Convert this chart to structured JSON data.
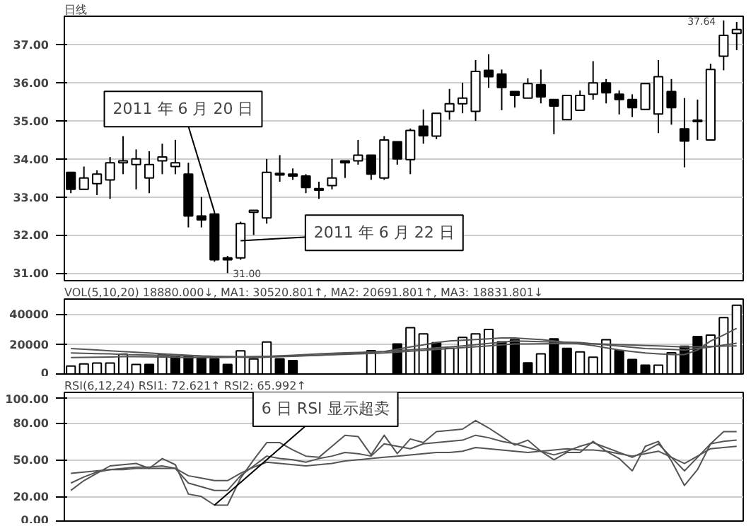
{
  "chart_data": [
    {
      "type": "candlestick",
      "title": "日线",
      "categories": [
        null,
        null,
        null,
        null,
        null,
        null,
        null,
        null,
        null,
        null,
        null,
        null,
        null,
        null,
        null,
        null,
        null,
        null,
        null,
        null,
        null,
        null,
        null,
        null,
        null,
        null,
        null,
        null,
        null,
        null,
        null,
        null,
        null,
        null,
        null,
        null,
        null,
        null,
        null,
        null,
        null,
        null,
        null,
        null,
        null,
        null,
        null,
        null,
        null,
        null,
        null,
        null
      ],
      "ohlc": [
        [
          33.65,
          33.65,
          33.1,
          33.2
        ],
        [
          33.2,
          33.8,
          33.2,
          33.5
        ],
        [
          33.35,
          33.7,
          33.05,
          33.6
        ],
        [
          33.45,
          34.05,
          32.95,
          33.9
        ],
        [
          33.9,
          34.6,
          33.6,
          33.95
        ],
        [
          33.85,
          34.25,
          33.2,
          34.0
        ],
        [
          33.5,
          34.2,
          33.1,
          33.85
        ],
        [
          33.95,
          34.4,
          33.6,
          34.05
        ],
        [
          33.8,
          34.5,
          33.6,
          33.9
        ],
        [
          33.6,
          33.9,
          32.2,
          32.5
        ],
        [
          32.5,
          33.0,
          32.2,
          32.4
        ],
        [
          32.55,
          32.6,
          31.3,
          31.35
        ],
        [
          31.4,
          31.45,
          31.0,
          31.35
        ],
        [
          31.4,
          32.35,
          31.35,
          32.3
        ],
        [
          32.6,
          32.65,
          32.0,
          32.65
        ],
        [
          32.45,
          34.0,
          32.3,
          33.65
        ],
        [
          33.62,
          34.1,
          33.4,
          33.58
        ],
        [
          33.6,
          33.75,
          33.45,
          33.55
        ],
        [
          33.55,
          33.6,
          33.1,
          33.25
        ],
        [
          33.22,
          33.4,
          32.95,
          33.18
        ],
        [
          33.3,
          34.0,
          33.2,
          33.5
        ],
        [
          33.95,
          33.95,
          33.5,
          33.9
        ],
        [
          33.95,
          34.5,
          33.85,
          34.1
        ],
        [
          34.1,
          34.1,
          33.45,
          33.6
        ],
        [
          33.5,
          34.6,
          33.45,
          34.5
        ],
        [
          34.45,
          34.45,
          33.85,
          34.0
        ],
        [
          33.98,
          34.8,
          33.6,
          34.75
        ],
        [
          34.86,
          35.3,
          34.4,
          34.61
        ],
        [
          34.6,
          35.2,
          34.52,
          35.2
        ],
        [
          35.25,
          35.84,
          35.03,
          35.45
        ],
        [
          35.45,
          36.0,
          35.2,
          35.6
        ],
        [
          35.25,
          36.6,
          35.0,
          36.3
        ],
        [
          36.33,
          36.75,
          35.87,
          36.16
        ],
        [
          36.23,
          36.35,
          35.28,
          35.88
        ],
        [
          35.77,
          35.77,
          35.35,
          35.67
        ],
        [
          35.6,
          36.12,
          35.6,
          35.98
        ],
        [
          35.95,
          36.35,
          35.46,
          35.63
        ],
        [
          35.56,
          35.56,
          34.65,
          35.39
        ],
        [
          35.03,
          35.67,
          35.03,
          35.67
        ],
        [
          35.28,
          35.8,
          35.28,
          35.67
        ],
        [
          35.7,
          36.57,
          35.56,
          36.0
        ],
        [
          36.0,
          36.1,
          35.46,
          35.74
        ],
        [
          35.7,
          35.8,
          35.17,
          35.56
        ],
        [
          35.56,
          35.7,
          35.1,
          35.35
        ],
        [
          35.3,
          35.98,
          35.3,
          35.98
        ],
        [
          35.18,
          36.6,
          34.68,
          36.16
        ],
        [
          35.77,
          36.1,
          34.9,
          35.35
        ],
        [
          34.79,
          35.6,
          33.78,
          34.47
        ],
        [
          34.98,
          35.56,
          34.5,
          35.02
        ],
        [
          34.5,
          36.5,
          34.5,
          36.35
        ],
        [
          36.7,
          37.64,
          36.33,
          37.25
        ],
        [
          37.3,
          37.6,
          36.86,
          37.4
        ]
      ],
      "ylim": [
        30.8,
        37.75
      ],
      "yticks": [
        {
          "value": 31,
          "label": "31.00"
        },
        {
          "value": 32,
          "label": "32.00"
        },
        {
          "value": 33,
          "label": "33.00"
        },
        {
          "value": 34,
          "label": "34.00"
        },
        {
          "value": 35,
          "label": "35.00"
        },
        {
          "value": 36,
          "label": "36.00"
        },
        {
          "value": 37,
          "label": "37.00"
        }
      ],
      "tick_labels": "y",
      "grid": "y",
      "annotations": [
        "2011 年 6 月 20 日",
        "2011 年 6 月 22 日",
        "31.00",
        "37.64"
      ]
    },
    {
      "type": "bar",
      "title": "VOL(5,10,20) 18880.000↓, MA1: 30520.801↑, MA2: 20691.801↑, MA3: 18831.801↓",
      "categories": [
        null,
        null,
        null,
        null,
        null,
        null,
        null,
        null,
        null,
        null,
        null,
        null,
        null,
        null,
        null,
        null,
        null,
        null,
        null,
        null,
        null,
        null,
        null,
        null,
        null,
        null,
        null,
        null,
        null,
        null,
        null,
        null,
        null,
        null,
        null,
        null,
        null,
        null,
        null,
        null,
        null,
        null,
        null,
        null,
        null,
        null,
        null,
        null,
        null,
        null,
        null,
        null
      ],
      "ylim": [
        0,
        50000
      ],
      "yticks": [
        0,
        20000,
        40000
      ],
      "tick_labels": "y",
      "grid": "y",
      "series": [
        {
          "type": "bar",
          "values": [
            5300,
            6700,
            7300,
            7300,
            13200,
            6400,
            6400,
            12600,
            11700,
            11700,
            10800,
            10200,
            6400,
            15500,
            10000,
            21400,
            10200,
            9000,
            null,
            null,
            null,
            null,
            null,
            15600,
            null,
            20000,
            30900,
            26800,
            20900,
            17100,
            24400,
            26800,
            29700,
            21500,
            22900,
            7400,
            13500,
            23500,
            17100,
            14700,
            11200,
            22900,
            15600,
            9700,
            5900,
            5900,
            14100,
            18500,
            25000,
            25900,
            37600,
            45900
          ],
          "colors": [
            "#ffffff",
            "#ffffff",
            "#ffffff",
            "#ffffff",
            "#ffffff",
            "#ffffff",
            "#000000",
            "#ffffff",
            "#000000",
            "#000000",
            "#000000",
            "#000000",
            "#000000",
            "#ffffff",
            "#ffffff",
            "#ffffff",
            "#000000",
            "#000000",
            "#ffffff",
            "#ffffff",
            "#ffffff",
            "#ffffff",
            "#ffffff",
            "#ffffff",
            "#ffffff",
            "#000000",
            "#ffffff",
            "#ffffff",
            "#000000",
            "#ffffff",
            "#ffffff",
            "#ffffff",
            "#ffffff",
            "#000000",
            "#000000",
            "#000000",
            "#ffffff",
            "#000000",
            "#000000",
            "#ffffff",
            "#ffffff",
            "#ffffff",
            "#000000",
            "#000000",
            "#000000",
            "#ffffff",
            "#ffffff",
            "#000000",
            "#000000",
            "#ffffff",
            "#ffffff",
            "#ffffff"
          ]
        },
        {
          "type": "line",
          "color": "#555555",
          "values": [
            17000,
            16500,
            16000,
            15500,
            15000,
            14500,
            14000,
            13500,
            13000,
            12500,
            12000,
            11800,
            11500,
            11200,
            11000,
            11200,
            11500,
            11800,
            12100,
            12500,
            13000,
            13500,
            14000,
            14500,
            15000,
            16500,
            18000,
            19500,
            21000,
            22000,
            22500,
            23000,
            23500,
            24000,
            24000,
            23500,
            23000,
            22000,
            21000,
            20000,
            19000,
            17500,
            16000,
            15000,
            14000,
            13500,
            13000,
            13000,
            16000,
            22000,
            26000,
            30500
          ]
        },
        {
          "type": "line",
          "color": "#555555",
          "values": [
            11000,
            11100,
            11200,
            11300,
            11500,
            11500,
            11400,
            11300,
            11200,
            11000,
            11000,
            11000,
            11100,
            11300,
            11500,
            11800,
            12100,
            12500,
            13000,
            13500,
            13800,
            14100,
            14400,
            14700,
            15000,
            15600,
            16200,
            16800,
            17400,
            18000,
            18800,
            19600,
            20400,
            21200,
            22000,
            21800,
            21600,
            21400,
            21200,
            21000,
            20200,
            19400,
            18600,
            17800,
            17000,
            16700,
            16400,
            16000,
            17000,
            18000,
            19300,
            20500
          ]
        },
        {
          "type": "line",
          "color": "#555555",
          "values": [
            14000,
            13800,
            13600,
            13400,
            13000,
            12800,
            12600,
            12400,
            12200,
            12000,
            11900,
            11800,
            11700,
            11600,
            11500,
            11700,
            11900,
            12100,
            12300,
            12500,
            12800,
            13100,
            13400,
            13700,
            14000,
            14600,
            15200,
            15800,
            16400,
            17000,
            17600,
            18200,
            18800,
            19400,
            20000,
            20100,
            20200,
            20300,
            20400,
            20500,
            20200,
            19900,
            19600,
            19300,
            19000,
            18700,
            18400,
            18000,
            18200,
            18400,
            18600,
            18800
          ]
        }
      ]
    },
    {
      "type": "line",
      "title": "RSI(6,12,24) RSI1: 72.621↑ RSI2: 65.992↑",
      "categories": [
        null,
        null,
        null,
        null,
        null,
        null,
        null,
        null,
        null,
        null,
        null,
        null,
        null,
        null,
        null,
        null,
        null,
        null,
        null,
        null,
        null,
        null,
        null,
        null,
        null,
        null,
        null,
        null,
        null,
        null,
        null,
        null,
        null,
        null,
        null,
        null,
        null,
        null,
        null,
        null,
        null,
        null,
        null,
        null,
        null,
        null,
        null,
        null,
        null,
        null,
        null,
        null
      ],
      "ylim": [
        0,
        105
      ],
      "yticks": [
        {
          "value": 0,
          "label": "0.00"
        },
        {
          "value": 20,
          "label": "20.00"
        },
        {
          "value": 50,
          "label": "50.00"
        },
        {
          "value": 80,
          "label": "80.00"
        },
        {
          "value": 100,
          "label": "100.00"
        }
      ],
      "tick_labels": "y",
      "grid": "y",
      "series": [
        {
          "color": "#555555",
          "values": [
            25,
            33,
            39,
            45,
            46,
            47,
            43,
            51,
            46,
            22,
            20,
            13,
            13,
            35,
            50,
            64,
            64,
            58,
            53,
            52,
            61,
            70,
            69,
            54,
            70,
            55,
            67,
            64,
            73,
            74,
            75,
            82,
            76,
            69,
            62,
            66,
            57,
            50,
            56,
            56,
            65,
            57,
            51,
            41,
            61,
            65,
            49,
            29,
            42,
            63,
            73,
            73
          ]
        },
        {
          "color": "#555555",
          "values": [
            31,
            36,
            40,
            42,
            43,
            44,
            44,
            45,
            43,
            31,
            28,
            25,
            25,
            37,
            45,
            53,
            51,
            50,
            48,
            51,
            53,
            56,
            55,
            53,
            63,
            61,
            59,
            63,
            64,
            65,
            66,
            70,
            68,
            65,
            63,
            60,
            57,
            54,
            57,
            61,
            64,
            60,
            56,
            52,
            57,
            63,
            52,
            41,
            52,
            63,
            65,
            66
          ]
        },
        {
          "color": "#555555",
          "values": [
            39,
            40,
            41,
            42,
            42,
            43,
            43,
            43,
            43,
            37,
            35,
            33,
            33,
            39,
            44,
            48,
            47,
            46,
            45,
            46,
            47,
            49,
            50,
            51,
            52,
            53,
            54,
            55,
            56,
            56,
            57,
            60,
            59,
            58,
            57,
            56,
            57,
            58,
            59,
            58,
            58,
            57,
            55,
            53,
            55,
            57,
            52,
            47,
            53,
            59,
            60,
            61
          ]
        }
      ],
      "annotations": [
        "6 日 RSI 显示超卖"
      ]
    }
  ]
}
